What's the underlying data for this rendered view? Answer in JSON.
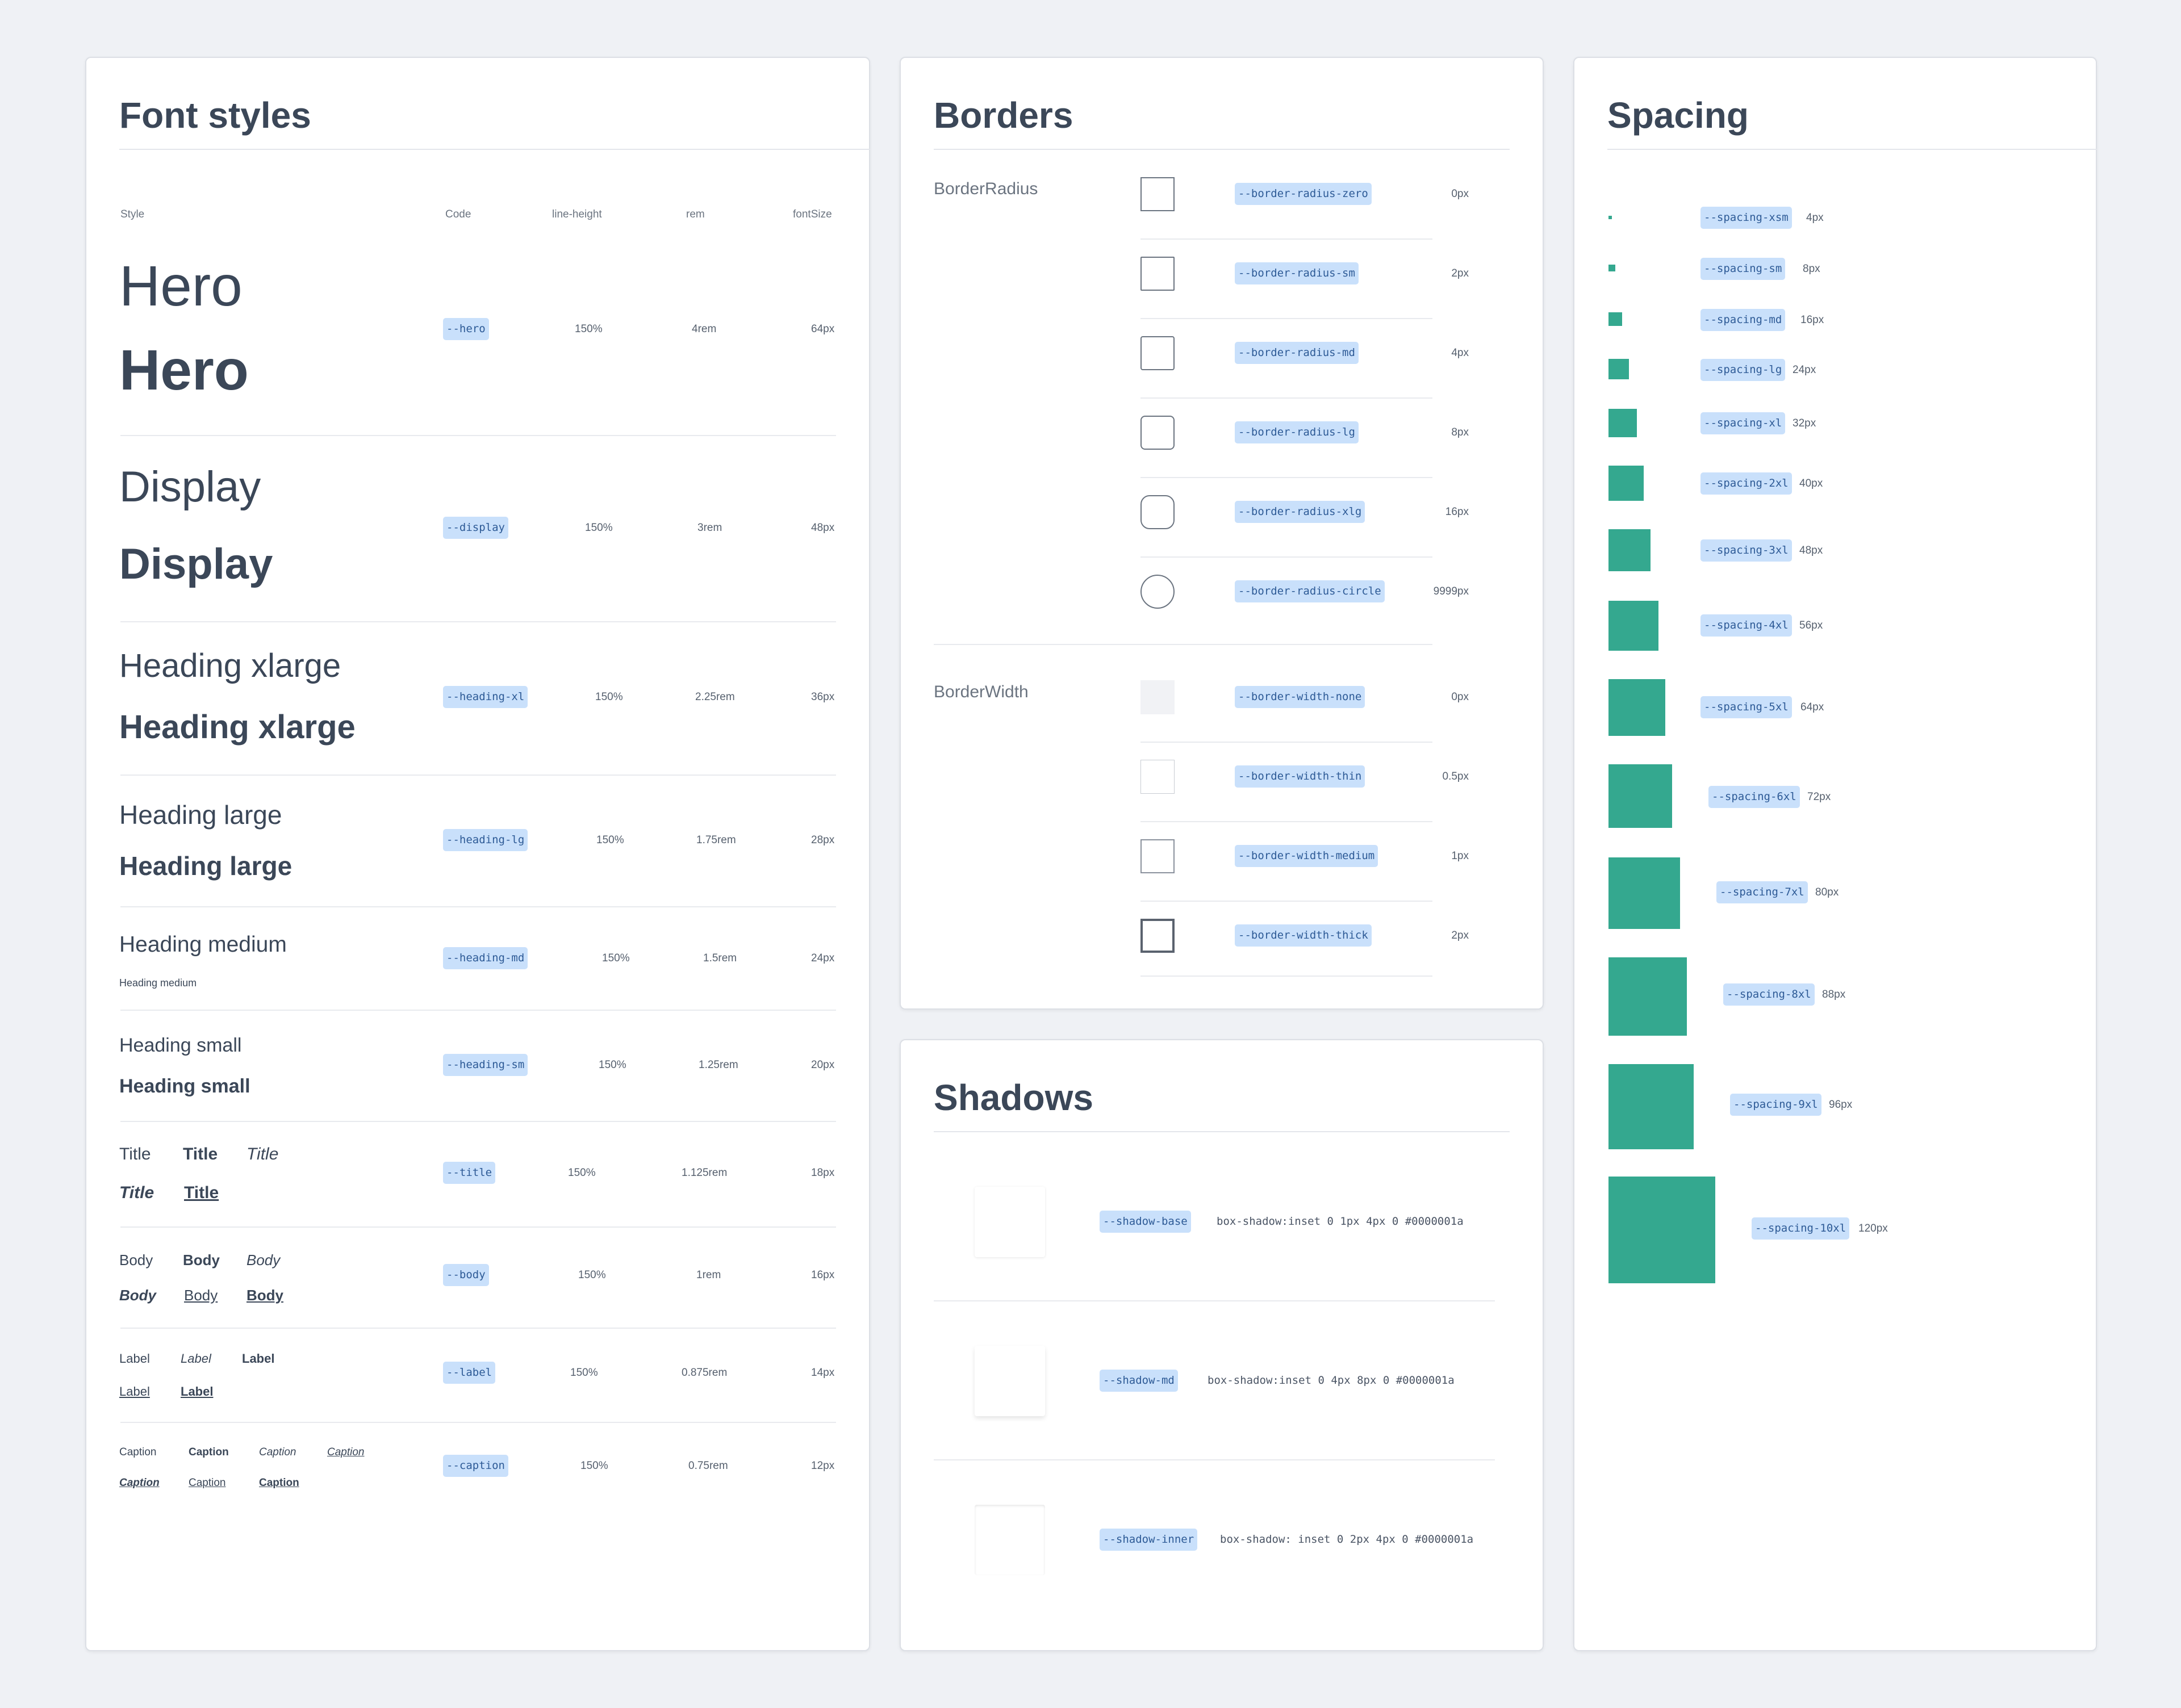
{
  "fonts": {
    "title": "Font styles",
    "headers": [
      "Style",
      "Code",
      "line-height",
      "rem",
      "fontSize"
    ],
    "rows": [
      {
        "sample": "Hero",
        "code": "--hero",
        "lh": "150%",
        "rem": "4rem",
        "px": "64px"
      },
      {
        "sample": "Display",
        "code": "--display",
        "lh": "150%",
        "rem": "3rem",
        "px": "48px"
      },
      {
        "sample": "Heading xlarge",
        "code": "--heading-xl",
        "lh": "150%",
        "rem": "2.25rem",
        "px": "36px"
      },
      {
        "sample": "Heading large",
        "code": "--heading-lg",
        "lh": "150%",
        "rem": "1.75rem",
        "px": "28px"
      },
      {
        "sample": "Heading medium",
        "code": "--heading-md",
        "lh": "150%",
        "rem": "1.5rem",
        "px": "24px"
      },
      {
        "sample": "Heading small",
        "code": "--heading-sm",
        "lh": "150%",
        "rem": "1.25rem",
        "px": "20px"
      },
      {
        "sample": "Title",
        "code": "--title",
        "lh": "150%",
        "rem": "1.125rem",
        "px": "18px"
      },
      {
        "sample": "Body",
        "code": "--body",
        "lh": "150%",
        "rem": "1rem",
        "px": "16px"
      },
      {
        "sample": "Label",
        "code": "--label",
        "lh": "150%",
        "rem": "0.875rem",
        "px": "14px"
      },
      {
        "sample": "Caption",
        "code": "--caption",
        "lh": "150%",
        "rem": "0.75rem",
        "px": "12px"
      }
    ]
  },
  "borders": {
    "title": "Borders",
    "radius_label": "BorderRadius",
    "width_label": "BorderWidth",
    "radius": [
      {
        "code": "--border-radius-zero",
        "value": "0px"
      },
      {
        "code": "--border-radius-sm",
        "value": "2px"
      },
      {
        "code": "--border-radius-md",
        "value": "4px"
      },
      {
        "code": "--border-radius-lg",
        "value": "8px"
      },
      {
        "code": "--border-radius-xlg",
        "value": "16px"
      },
      {
        "code": "--border-radius-circle",
        "value": "9999px"
      }
    ],
    "width": [
      {
        "code": "--border-width-none",
        "value": "0px"
      },
      {
        "code": "--border-width-thin",
        "value": "0.5px"
      },
      {
        "code": "--border-width-medium",
        "value": "1px"
      },
      {
        "code": "--border-width-thick",
        "value": "2px"
      }
    ]
  },
  "shadows": {
    "title": "Shadows",
    "items": [
      {
        "code": "--shadow-base",
        "css": "box-shadow:inset 0 1px 4px 0 #0000001a"
      },
      {
        "code": "--shadow-md",
        "css": "box-shadow:inset 0 4px 8px 0 #0000001a"
      },
      {
        "code": "--shadow-inner",
        "css": "box-shadow: inset 0 2px 4px 0 #0000001a"
      }
    ]
  },
  "spacing": {
    "title": "Spacing",
    "accent": "#34a88f",
    "items": [
      {
        "code": "--spacing-xsm",
        "value": "4px"
      },
      {
        "code": "--spacing-sm",
        "value": "8px"
      },
      {
        "code": "--spacing-md",
        "value": "16px"
      },
      {
        "code": "--spacing-lg",
        "value": "24px"
      },
      {
        "code": "--spacing-xl",
        "value": "32px"
      },
      {
        "code": "--spacing-2xl",
        "value": "40px"
      },
      {
        "code": "--spacing-3xl",
        "value": "48px"
      },
      {
        "code": "--spacing-4xl",
        "value": "56px"
      },
      {
        "code": "--spacing-5xl",
        "value": "64px"
      },
      {
        "code": "--spacing-6xl",
        "value": "72px"
      },
      {
        "code": "--spacing-7xl",
        "value": "80px"
      },
      {
        "code": "--spacing-8xl",
        "value": "88px"
      },
      {
        "code": "--spacing-9xl",
        "value": "96px"
      },
      {
        "code": "--spacing-10xl",
        "value": "120px"
      }
    ]
  }
}
